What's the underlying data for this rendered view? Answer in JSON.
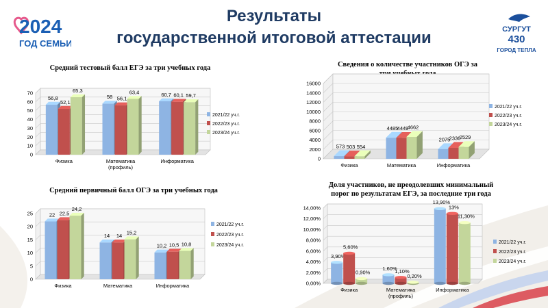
{
  "header": {
    "title_line1": "Результаты",
    "title_line2": "государственной   итоговой  аттестации"
  },
  "logo_left": {
    "year": "2024",
    "caption": "ГОД СЕМЬИ"
  },
  "logo_right": {
    "name": "СУРГУТ",
    "number": "430",
    "caption": "ГОРОД ТЕПЛА"
  },
  "colors": {
    "s1": "#8eb4e3",
    "s2": "#c0504d",
    "s3": "#c3d69b",
    "title": "#1f3b63"
  },
  "chart_data": [
    {
      "id": "ege_avg",
      "type": "bar",
      "title": "Средний тестовый балл ЕГЭ за три учебных года",
      "categories": [
        "Физика",
        "Математика (профиль)",
        "Информатика"
      ],
      "series": [
        {
          "name": "2021/22 уч.г.",
          "values": [
            56.8,
            58,
            60.7
          ]
        },
        {
          "name": "2022/23 уч.г.",
          "values": [
            52.1,
            56.1,
            60.1
          ]
        },
        {
          "name": "2023/24 уч.г.",
          "values": [
            65.3,
            63.4,
            59.7
          ]
        }
      ],
      "data_labels": [
        [
          "56,8",
          "58",
          "60,7"
        ],
        [
          "52,1",
          "56,1",
          "60,1"
        ],
        [
          "65,3",
          "63,4",
          "59,7"
        ]
      ],
      "ylim": [
        0,
        70
      ],
      "yticks": [
        "0",
        "10",
        "20",
        "30",
        "40",
        "50",
        "60",
        "70"
      ],
      "legend": "right"
    },
    {
      "id": "oge_count",
      "type": "bar",
      "title": "Сведения о количестве  участников  ОГЭ за три учебных года",
      "categories": [
        "Физика",
        "Математика",
        "Информатика"
      ],
      "series": [
        {
          "name": "2021/22 уч.г.",
          "values": [
            573,
            4485,
            2075
          ]
        },
        {
          "name": "2022/23 уч.г.",
          "values": [
            503,
            4449,
            2336
          ]
        },
        {
          "name": "2023/24 уч.г.",
          "values": [
            554,
            4662,
            2529
          ]
        }
      ],
      "data_labels": [
        [
          "573",
          "4485",
          "2075"
        ],
        [
          "503",
          "4449",
          "2336"
        ],
        [
          "554",
          "4662",
          "2529"
        ]
      ],
      "ylim": [
        0,
        16000
      ],
      "yticks": [
        "0",
        "2000",
        "4000",
        "6000",
        "8000",
        "10000",
        "12000",
        "14000",
        "16000"
      ],
      "legend": "right"
    },
    {
      "id": "oge_avg",
      "type": "bar",
      "title": "Средний первичный балл ОГЭ за три учебных года",
      "categories": [
        "Физика",
        "Математика",
        "Информатика"
      ],
      "series": [
        {
          "name": "2021/22 уч.г.",
          "values": [
            22,
            14,
            10.2
          ]
        },
        {
          "name": "2022/23 уч.г.",
          "values": [
            22.5,
            14,
            10.5
          ]
        },
        {
          "name": "2023/24 уч.г.",
          "values": [
            24.2,
            15.2,
            10.8
          ]
        }
      ],
      "data_labels": [
        [
          "22",
          "14",
          "10,2"
        ],
        [
          "22,5",
          "14",
          "10,5"
        ],
        [
          "24,2",
          "15,2",
          "10,8"
        ]
      ],
      "ylim": [
        0,
        25
      ],
      "yticks": [
        "0",
        "5",
        "10",
        "15",
        "20",
        "25"
      ],
      "legend": "right"
    },
    {
      "id": "ege_fail",
      "type": "bar",
      "title": "Доля участников, не преодолевших минимальный порог по результатам ЕГЭ, за последние три года",
      "categories": [
        "Физика",
        "Математика (профиль)",
        "Информатика"
      ],
      "series": [
        {
          "name": "2021/22 уч.г.",
          "values": [
            3.9,
            1.6,
            13.9
          ]
        },
        {
          "name": "2022/23 уч.г.",
          "values": [
            5.6,
            1.1,
            13
          ]
        },
        {
          "name": "2023/24 уч.г.",
          "values": [
            0.9,
            0.2,
            11.3
          ]
        }
      ],
      "data_labels": [
        [
          "3,90%",
          "1,60%",
          "13,90%"
        ],
        [
          "5,60%",
          "1,10%",
          "13%"
        ],
        [
          "0,90%",
          "0,20%",
          "11,30%"
        ]
      ],
      "ylim": [
        0,
        14
      ],
      "yticks": [
        "0,00%",
        "2,00%",
        "4,00%",
        "6,00%",
        "8,00%",
        "10,00%",
        "12,00%",
        "14,00%"
      ],
      "legend": "right"
    }
  ]
}
